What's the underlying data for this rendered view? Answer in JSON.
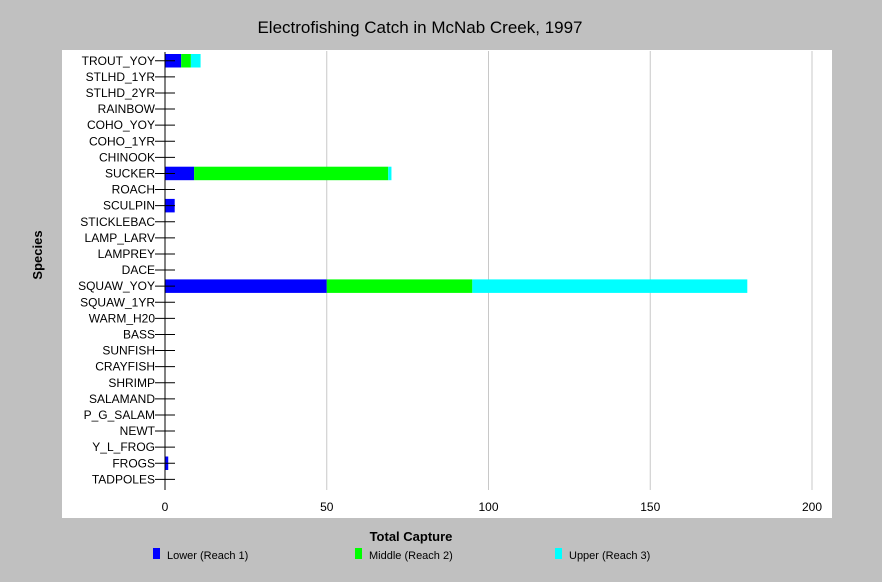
{
  "chart_data": {
    "type": "bar",
    "orientation": "horizontal",
    "stacked": true,
    "title": "Electrofishing Catch in McNab Creek, 1997",
    "xlabel": "Total Capture",
    "ylabel": "Species",
    "xlim": [
      0,
      200
    ],
    "xticks": [
      0,
      50,
      100,
      150,
      200
    ],
    "grid": true,
    "legend_position": "bottom",
    "categories": [
      "TROUT_YOY",
      "STLHD_1YR",
      "STLHD_2YR",
      "RAINBOW",
      "COHO_YOY",
      "COHO_1YR",
      "CHINOOK",
      "SUCKER",
      "ROACH",
      "SCULPIN",
      "STICKLEBAC",
      "LAMP_LARV",
      "LAMPREY",
      "DACE",
      "SQUAW_YOY",
      "SQUAW_1YR",
      "WARM_H20",
      "BASS",
      "SUNFISH",
      "CRAYFISH",
      "SHRIMP",
      "SALAMAND",
      "P_G_SALAM",
      "NEWT",
      "Y_L_FROG",
      "FROGS",
      "TADPOLES"
    ],
    "series": [
      {
        "name": "Lower (Reach 1)",
        "color": "#0000ff",
        "values": [
          5,
          0,
          0,
          0,
          0,
          0,
          0,
          9,
          0,
          3,
          0,
          0,
          0,
          0,
          50,
          0,
          0,
          0,
          0,
          0,
          0,
          0,
          0,
          0,
          0,
          1,
          0
        ]
      },
      {
        "name": "Middle (Reach 2)",
        "color": "#00ff00",
        "values": [
          3,
          0,
          0,
          0,
          0,
          0,
          0,
          60,
          0,
          0,
          0,
          0,
          0,
          0,
          45,
          0,
          0,
          0,
          0,
          0,
          0,
          0,
          0,
          0,
          0,
          0,
          0
        ]
      },
      {
        "name": "Upper (Reach 3)",
        "color": "#00ffff",
        "values": [
          3,
          0,
          0,
          0,
          0,
          0,
          0,
          1,
          0,
          0,
          0,
          0,
          0,
          0,
          85,
          0,
          0,
          0,
          0,
          0,
          0,
          0,
          0,
          0,
          0,
          0,
          0
        ]
      }
    ]
  }
}
